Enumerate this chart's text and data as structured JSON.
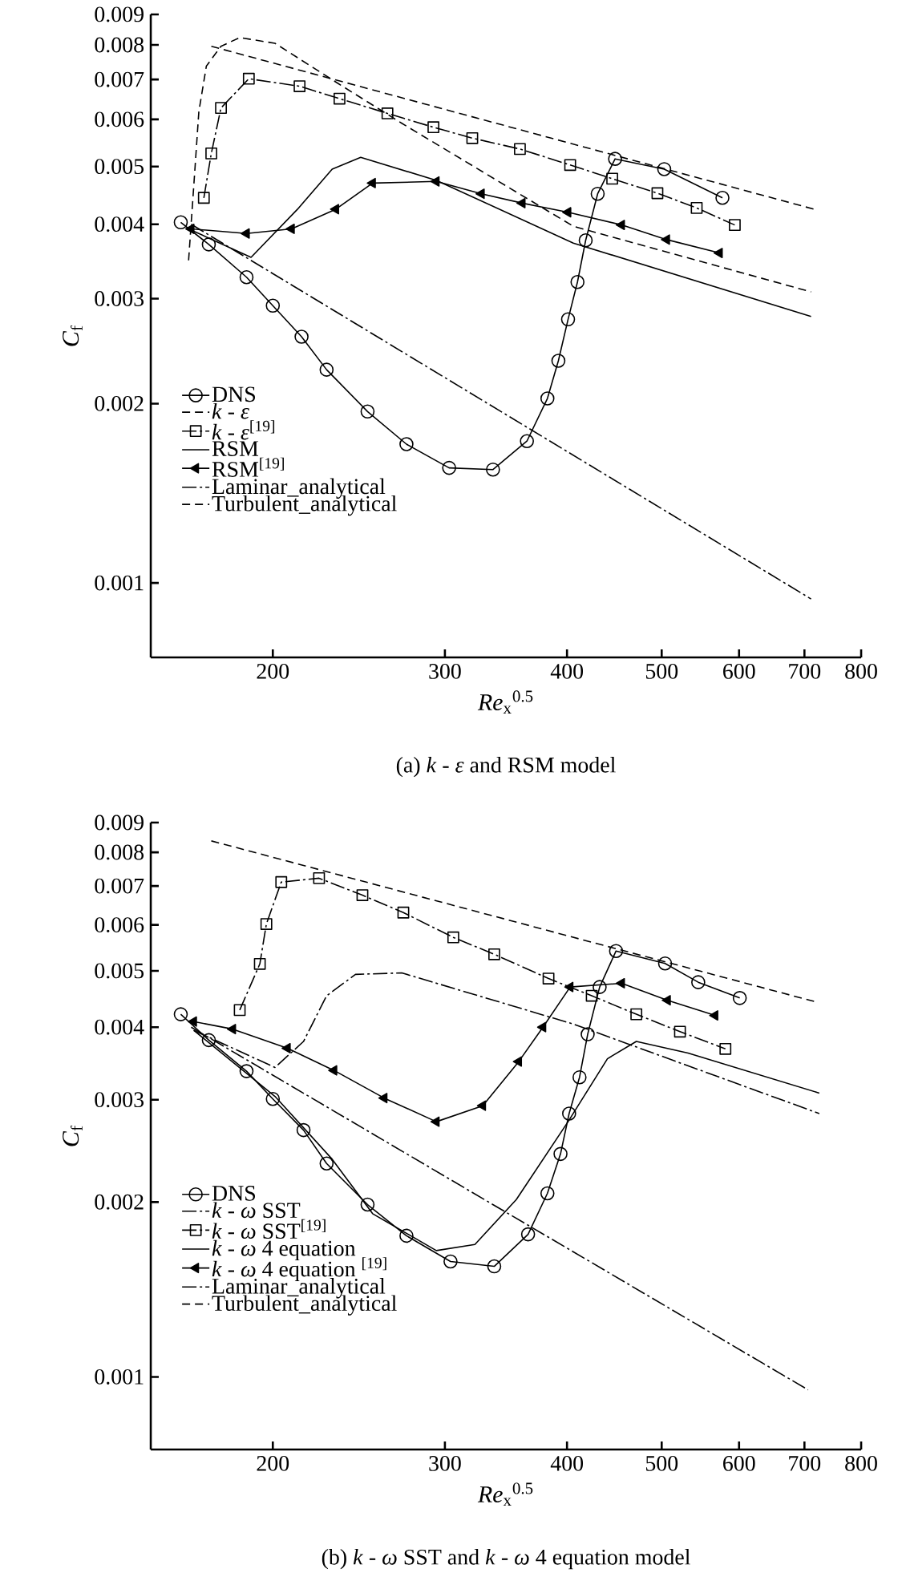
{
  "chart_data": [
    {
      "type": "line",
      "title": "(a)  *k* - *ε* and RSM model",
      "xlabel": "*Re*$_{x}$$^{0.5}$",
      "ylabel": "*C*$_{f}$",
      "log": "xy",
      "xlim": [
        150,
        800
      ],
      "ylim": [
        0.00075,
        0.009
      ],
      "xticks": [
        200,
        300,
        400,
        500,
        600,
        700,
        800
      ],
      "yticks": [
        0.001,
        0.002,
        0.003,
        0.004,
        0.005,
        0.006,
        0.007,
        0.008,
        0.009
      ],
      "legend": "bottom left",
      "series": [
        {
          "name": "DNS",
          "color": "#000000",
          "marker": "circle",
          "line_style": "solid",
          "x": [
            161,
            172,
            188,
            200,
            214,
            227,
            250,
            274,
            303,
            336,
            364,
            382,
            392,
            401,
            410,
            418,
            430,
            448,
            503,
            577
          ],
          "values": [
            0.00403,
            0.0037,
            0.00326,
            0.00292,
            0.00259,
            0.00228,
            0.00194,
            0.00171,
            0.00156,
            0.00155,
            0.00173,
            0.00204,
            0.00236,
            0.00277,
            0.0032,
            0.00376,
            0.0045,
            0.00515,
            0.00495,
            0.00443
          ]
        },
        {
          "name": "*k* - *ε*",
          "color": "#000000",
          "marker": "none",
          "line_style": "dashed",
          "x": [
            164,
            166,
            168,
            171,
            177,
            185,
            201,
            233,
            271,
            406,
            711
          ],
          "values": [
            0.00348,
            0.00463,
            0.00618,
            0.00737,
            0.00796,
            0.00823,
            0.00805,
            0.0069,
            0.00591,
            0.00397,
            0.00308
          ]
        },
        {
          "name": "*k* - *ε*$^{[19]}$",
          "color": "#000000",
          "marker": "square",
          "line_style": "dashdot",
          "x": [
            170,
            173,
            177,
            189,
            213,
            234,
            262,
            292,
            320,
            358,
            403,
            445,
            495,
            543,
            594
          ],
          "values": [
            0.00443,
            0.00526,
            0.00627,
            0.00702,
            0.00682,
            0.0065,
            0.00614,
            0.00582,
            0.00558,
            0.00535,
            0.00503,
            0.00477,
            0.00451,
            0.00426,
            0.00399
          ]
        },
        {
          "name": "RSM",
          "color": "#000000",
          "marker": "none",
          "line_style": "solid",
          "x": [
            164,
            190,
            212,
            230,
            246,
            294,
            406,
            711
          ],
          "values": [
            0.00393,
            0.00352,
            0.00424,
            0.00495,
            0.00518,
            0.00474,
            0.00372,
            0.0028
          ]
        },
        {
          "name": "RSM$^{[19]}$",
          "color": "#000000",
          "marker": "triangle",
          "line_style": "solid",
          "x": [
            165,
            188,
            209,
            232,
            253,
            294,
            327,
            360,
            401,
            455,
            506,
            573
          ],
          "values": [
            0.00393,
            0.00386,
            0.00393,
            0.00424,
            0.00469,
            0.00472,
            0.0045,
            0.00434,
            0.00419,
            0.00399,
            0.00377,
            0.00358
          ]
        },
        {
          "name": "Laminar_analytical",
          "color": "#000000",
          "marker": "none",
          "line_style": "dashdot",
          "x": [
            165,
            711
          ],
          "values": [
            0.004,
            0.00094
          ]
        },
        {
          "name": "Turbulent_analytical",
          "color": "#000000",
          "marker": "none",
          "line_style": "dashed",
          "x": [
            173,
            716
          ],
          "values": [
            0.00796,
            0.00424
          ]
        }
      ]
    },
    {
      "type": "line",
      "title": "(b)  *k* - *ω* SST and *k* - *ω* 4 equation model",
      "xlabel": "*Re*$_{x}$$^{0.5}$",
      "ylabel": "*C*$_{f}$",
      "log": "xy",
      "xlim": [
        150,
        800
      ],
      "ylim": [
        0.00075,
        0.009
      ],
      "xticks": [
        200,
        300,
        400,
        500,
        600,
        700,
        800
      ],
      "yticks": [
        0.001,
        0.002,
        0.003,
        0.004,
        0.005,
        0.006,
        0.007,
        0.008,
        0.009
      ],
      "legend": "bottom left",
      "series": [
        {
          "name": "DNS",
          "color": "#000000",
          "marker": "circle",
          "line_style": "solid",
          "x": [
            161,
            172,
            188,
            200,
            215,
            227,
            250,
            274,
            304,
            337,
            365,
            382,
            394,
            402,
            412,
            420,
            432,
            449,
            504,
            545,
            601
          ],
          "values": [
            0.00421,
            0.0038,
            0.00336,
            0.00301,
            0.00266,
            0.00233,
            0.00198,
            0.00175,
            0.00158,
            0.00155,
            0.00176,
            0.00207,
            0.00242,
            0.00284,
            0.00328,
            0.00389,
            0.00469,
            0.00541,
            0.00515,
            0.00478,
            0.00449
          ]
        },
        {
          "name": "*k* - *ω* SST",
          "color": "#000000",
          "marker": "none",
          "line_style": "dashdot",
          "x": [
            166,
            201,
            215,
            227,
            243,
            271,
            406,
            725
          ],
          "values": [
            0.00395,
            0.00341,
            0.00378,
            0.00453,
            0.00493,
            0.00496,
            0.00405,
            0.00284
          ]
        },
        {
          "name": "*k* - *ω* SST$^{[19]}$",
          "color": "#000000",
          "marker": "square",
          "line_style": "dashdot",
          "x": [
            185,
            194,
            197,
            204,
            223,
            247,
            272,
            306,
            337,
            383,
            424,
            471,
            522,
            581
          ],
          "values": [
            0.00428,
            0.00514,
            0.00602,
            0.00711,
            0.00722,
            0.00675,
            0.0063,
            0.00571,
            0.00534,
            0.00485,
            0.00453,
            0.00421,
            0.00393,
            0.00367
          ]
        },
        {
          "name": "*k* - *ω* 4 equation",
          "color": "#000000",
          "marker": "none",
          "line_style": "solid",
          "x": [
            166,
            201,
            230,
            253,
            294,
            322,
            355,
            401,
            440,
            471,
            532,
            725
          ],
          "values": [
            0.00395,
            0.00304,
            0.00237,
            0.00191,
            0.00165,
            0.00169,
            0.00202,
            0.00275,
            0.00353,
            0.00378,
            0.00361,
            0.00308
          ]
        },
        {
          "name": "*k* - *ω* 4 equation $^{[19]}$",
          "color": "#000000",
          "marker": "triangle",
          "line_style": "solid",
          "x": [
            166,
            182,
            207,
            231,
            260,
            294,
            328,
            357,
            378,
            403,
            455,
            507,
            567
          ],
          "values": [
            0.00409,
            0.00397,
            0.00368,
            0.00337,
            0.00302,
            0.00275,
            0.00293,
            0.00349,
            0.004,
            0.00469,
            0.00476,
            0.00445,
            0.00419
          ]
        },
        {
          "name": "Laminar_analytical",
          "color": "#000000",
          "marker": "none",
          "line_style": "dashdot",
          "x": [
            165,
            706
          ],
          "values": [
            0.004,
            0.00095
          ]
        },
        {
          "name": "Turbulent_analytical",
          "color": "#000000",
          "marker": "none",
          "line_style": "dashed",
          "x": [
            173,
            716
          ],
          "values": [
            0.00837,
            0.00443
          ]
        }
      ]
    }
  ]
}
